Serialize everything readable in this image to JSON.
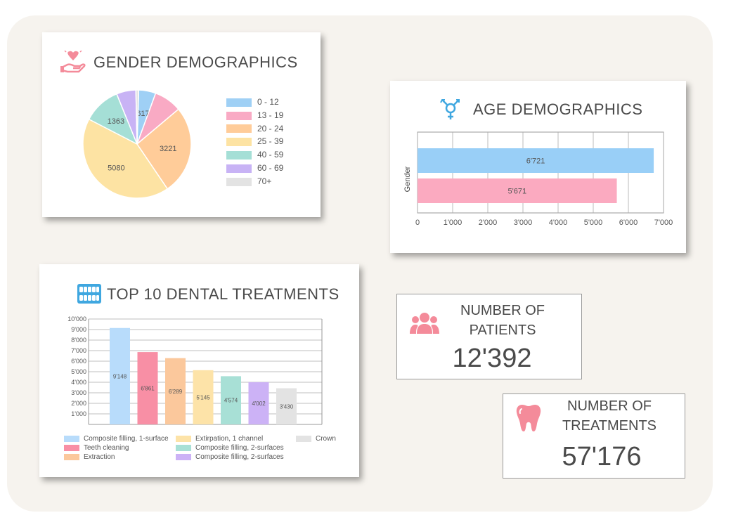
{
  "gender_card": {
    "title": "GENDER DEMOGRAPHICS"
  },
  "age_card": {
    "title": "AGE DEMOGRAPHICS",
    "ylabel": "Gender"
  },
  "treatments_card": {
    "title": "TOP 10 DENTAL TREATMENTS"
  },
  "patients_stat": {
    "label": "NUMBER OF\nPATIENTS",
    "value": "12'392",
    "icon": "people-icon",
    "color": "#f48b9a"
  },
  "treatments_stat": {
    "label": "NUMBER OF\nTREATMENTS",
    "value": "57'176",
    "icon": "tooth-icon",
    "color": "#f48b9a"
  },
  "chart_data": [
    {
      "type": "pie",
      "title": "GENDER DEMOGRAPHICS",
      "categories": [
        "0 - 12",
        "13 - 19",
        "20 - 24",
        "25 - 39",
        "40 - 59",
        "60 - 69",
        "70+"
      ],
      "values": [
        617,
        1000,
        3221,
        5080,
        1363,
        700,
        100
      ],
      "data_labels": [
        "617",
        "",
        "3221",
        "5080",
        "1363",
        "",
        ""
      ],
      "colors": [
        "#9fd0f5",
        "#f9aac4",
        "#ffcc99",
        "#fde3a3",
        "#a5dfd6",
        "#c8b3f5",
        "#e3e3e3"
      ],
      "legend_position": "right"
    },
    {
      "type": "bar",
      "orientation": "horizontal",
      "title": "AGE DEMOGRAPHICS",
      "ylabel": "Gender",
      "series": [
        {
          "value": 6721,
          "label": "6'721",
          "color": "#99cff7"
        },
        {
          "value": 5671,
          "label": "5'671",
          "color": "#fbaac0"
        }
      ],
      "xlim": [
        0,
        7000
      ],
      "xticks": [
        "0",
        "1'000",
        "2'000",
        "3'000",
        "4'000",
        "5'000",
        "6'000",
        "7'000"
      ],
      "grid": true
    },
    {
      "type": "bar",
      "title": "TOP 10 DENTAL TREATMENTS",
      "values": [
        9148,
        6861,
        6289,
        5145,
        4574,
        4002,
        3430
      ],
      "labels": [
        "9'148",
        "6'861",
        "6'289",
        "5'145",
        "4'574",
        "4'002",
        "3'430"
      ],
      "colors": [
        "#b8dcfb",
        "#f88fa5",
        "#fbc89c",
        "#fde3a8",
        "#a8e0d6",
        "#ccb2f6",
        "#e3e3e3"
      ],
      "legend": [
        "Composite filling, 1-surface",
        "Teeth cleaning",
        "Extraction",
        "Extirpation, 1 channel",
        "Composite filling, 2-surfaces",
        "Composite filling, 2-surfaces",
        "Crown"
      ],
      "ylim": [
        0,
        10000
      ],
      "yticks": [
        "1'000",
        "2'000",
        "3'000",
        "4'000",
        "5'000",
        "6'000",
        "7'000",
        "8'000",
        "9'000",
        "10'000"
      ],
      "grid": true,
      "legend_position": "bottom"
    }
  ]
}
